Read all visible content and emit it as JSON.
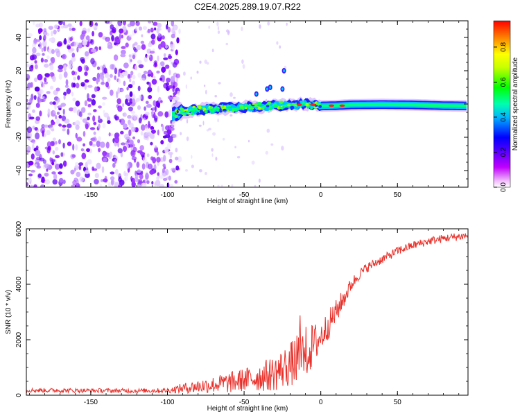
{
  "title": "C2E4.2025.289.19.07.R22",
  "chart_data": [
    {
      "type": "heatmap",
      "title": "C2E4.2025.289.19.07.R22",
      "xlabel": "Height of straight line (km)",
      "ylabel": "Frequency (Hz)",
      "xlim": [
        -192,
        96
      ],
      "ylim": [
        -50,
        50
      ],
      "x_ticks": [
        -150,
        -100,
        -50,
        0,
        50
      ],
      "y_ticks": [
        -40,
        -20,
        0,
        20,
        40
      ],
      "x_tick_labels": [
        "-150",
        "-100",
        "-50",
        "0",
        "50"
      ],
      "y_tick_labels": [
        "-40",
        "-20",
        "0",
        "20",
        "40"
      ],
      "colorbar": {
        "label": "Normalized spectral amplitude",
        "range": [
          0,
          0.95
        ],
        "ticks": [
          0.0,
          0.2,
          0.4,
          0.6,
          0.8
        ],
        "tick_labels": [
          "0.0",
          "0.2",
          "0.4",
          "0.6",
          "0.8"
        ],
        "colors": [
          "#ffffff",
          "#e400ff",
          "#8a00ff",
          "#0000ff",
          "#00c8ff",
          "#00ff60",
          "#a0ff00",
          "#ffff00",
          "#ff8000",
          "#ff0000"
        ]
      },
      "noise_region_x": [
        -192,
        -92
      ],
      "signal_track": [
        {
          "x": -97,
          "y": -6.5
        },
        {
          "x": -90,
          "y": -4.5
        },
        {
          "x": -80,
          "y": -3.5
        },
        {
          "x": -70,
          "y": -3
        },
        {
          "x": -60,
          "y": -2.5
        },
        {
          "x": -50,
          "y": -2
        },
        {
          "x": -40,
          "y": -1.5
        },
        {
          "x": -30,
          "y": -1
        },
        {
          "x": -20,
          "y": -0.5
        },
        {
          "x": -10,
          "y": 0
        },
        {
          "x": 0,
          "y": -1.2
        },
        {
          "x": 10,
          "y": -1
        },
        {
          "x": 20,
          "y": -0.5
        },
        {
          "x": 40,
          "y": -0.3
        },
        {
          "x": 60,
          "y": -0.5
        },
        {
          "x": 80,
          "y": -1
        },
        {
          "x": 96,
          "y": -1.2
        }
      ],
      "spur_points": [
        {
          "x": -35,
          "y": 9
        },
        {
          "x": -33,
          "y": 10
        },
        {
          "x": -24,
          "y": 20
        },
        {
          "x": -25,
          "y": 9
        },
        {
          "x": -42,
          "y": 6
        }
      ],
      "hot_spots": [
        {
          "x": -14,
          "y": -0.5
        },
        {
          "x": -5,
          "y": -0.5
        },
        {
          "x": 7,
          "y": -1
        },
        {
          "x": 14,
          "y": -1
        }
      ]
    },
    {
      "type": "line",
      "xlabel": "Height of straight line (km)",
      "ylabel": "SNR (10 * v/v)",
      "xlim": [
        -192,
        96
      ],
      "ylim": [
        0,
        6000
      ],
      "x_ticks": [
        -150,
        -100,
        -50,
        0,
        50
      ],
      "y_ticks": [
        0,
        2000,
        4000,
        6000
      ],
      "x_tick_labels": [
        "-150",
        "-100",
        "-50",
        "0",
        "50"
      ],
      "y_tick_labels": [
        "0",
        "2000",
        "4000",
        "6000"
      ],
      "series": [
        {
          "name": "SNR",
          "color": "#e8302a",
          "envelope_x": [
            -192,
            -160,
            -120,
            -100,
            -90,
            -80,
            -70,
            -60,
            -50,
            -40,
            -30,
            -20,
            -15,
            -10,
            0,
            10,
            15,
            20,
            25,
            30,
            40,
            50,
            60,
            70,
            80,
            90,
            96
          ],
          "envelope_y": [
            180,
            170,
            160,
            170,
            250,
            320,
            380,
            450,
            550,
            650,
            800,
            1100,
            1300,
            1500,
            2100,
            3000,
            3500,
            4000,
            4350,
            4600,
            4900,
            5200,
            5400,
            5550,
            5650,
            5720,
            5750
          ],
          "noise_y": [
            80,
            80,
            80,
            90,
            180,
            250,
            300,
            380,
            420,
            520,
            650,
            800,
            900,
            1000,
            600,
            450,
            350,
            250,
            200,
            180,
            160,
            160,
            150,
            150,
            150,
            150,
            150
          ]
        }
      ]
    }
  ]
}
